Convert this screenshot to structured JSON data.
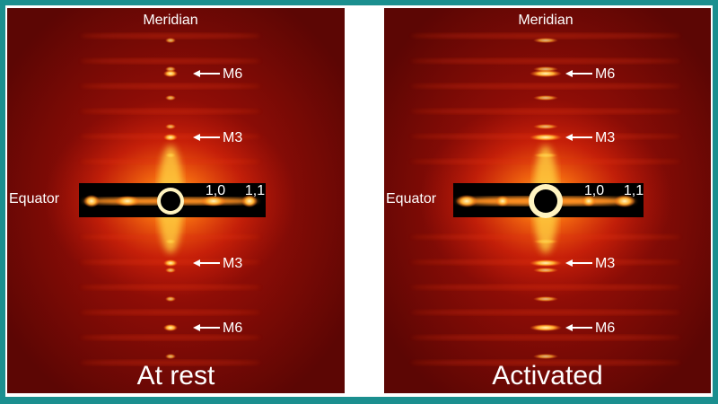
{
  "panels": [
    {
      "top_label": "Meridian",
      "side_label": "Equator",
      "reflections": [
        "1,0",
        "1,1"
      ],
      "meridional": [
        "M6",
        "M3",
        "M3",
        "M6"
      ],
      "caption": "At rest"
    },
    {
      "top_label": "Meridian",
      "side_label": "Equator",
      "reflections": [
        "1,0",
        "1,1"
      ],
      "meridional": [
        "M6",
        "M3",
        "M3",
        "M6"
      ],
      "caption": "Activated"
    }
  ]
}
